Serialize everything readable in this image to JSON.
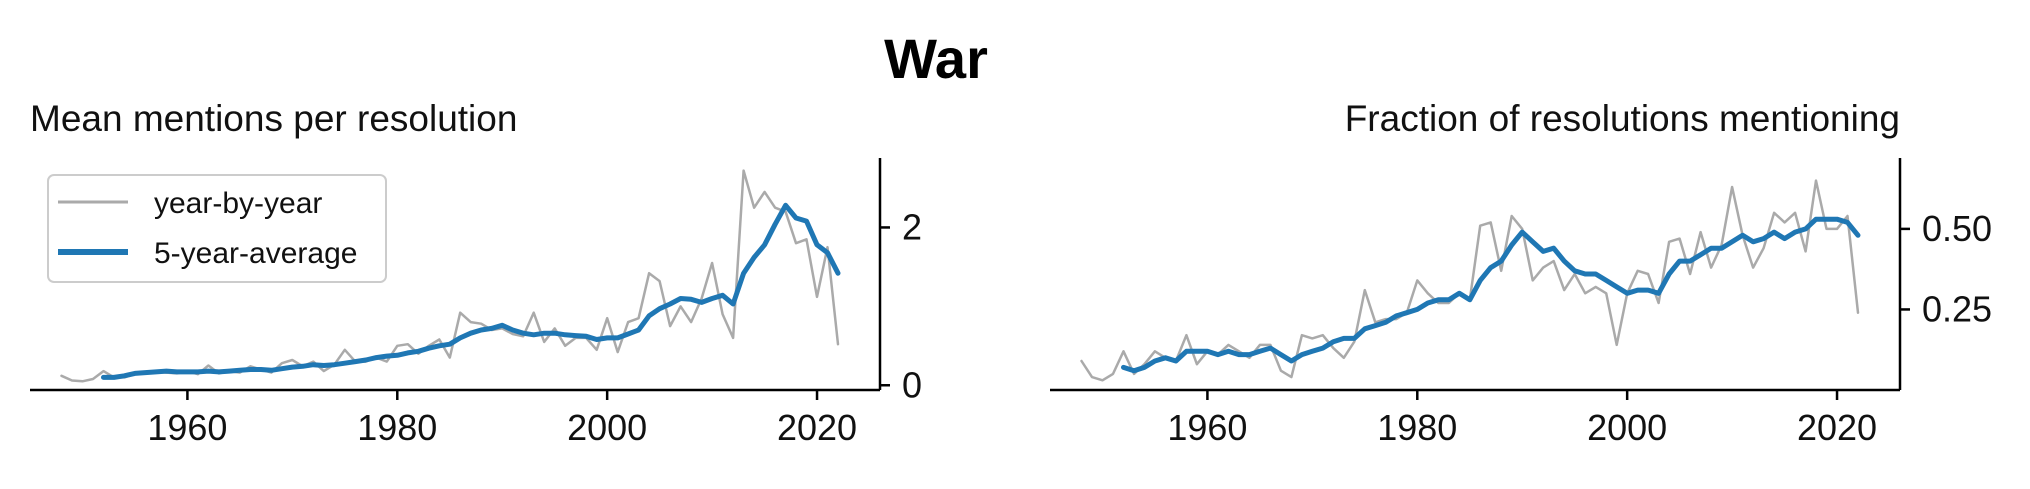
{
  "suptitle": "War",
  "legend": {
    "raw": "year-by-year",
    "avg": "5-year-average"
  },
  "colors": {
    "raw": "#aaaaaa",
    "avg": "#1f77b4",
    "axis": "#000000"
  },
  "chart_data": [
    {
      "type": "line",
      "title": "Mean mentions per resolution",
      "xlabel": "",
      "ylabel": "",
      "xlim": [
        1945,
        2026
      ],
      "ylim": [
        -0.06,
        2.88
      ],
      "xticks": [
        1960,
        1980,
        2000,
        2020
      ],
      "yticks": [
        0,
        2
      ],
      "y_axis_side": "right",
      "legend_position": "upper left",
      "series": [
        {
          "name": "year-by-year",
          "x": [
            1948,
            1949,
            1950,
            1951,
            1952,
            1953,
            1954,
            1955,
            1956,
            1957,
            1958,
            1959,
            1960,
            1961,
            1962,
            1963,
            1964,
            1965,
            1966,
            1967,
            1968,
            1969,
            1970,
            1971,
            1972,
            1973,
            1974,
            1975,
            1976,
            1977,
            1978,
            1979,
            1980,
            1981,
            1982,
            1983,
            1984,
            1985,
            1986,
            1987,
            1988,
            1989,
            1990,
            1991,
            1992,
            1993,
            1994,
            1995,
            1996,
            1997,
            1998,
            1999,
            2000,
            2001,
            2002,
            2003,
            2004,
            2005,
            2006,
            2007,
            2008,
            2009,
            2010,
            2011,
            2012,
            2013,
            2014,
            2015,
            2016,
            2017,
            2018,
            2019,
            2020,
            2021,
            2022
          ],
          "y": [
            0.12,
            0.06,
            0.05,
            0.08,
            0.18,
            0.1,
            0.1,
            0.14,
            0.16,
            0.17,
            0.16,
            0.15,
            0.18,
            0.14,
            0.25,
            0.15,
            0.18,
            0.16,
            0.24,
            0.2,
            0.16,
            0.28,
            0.32,
            0.24,
            0.3,
            0.18,
            0.26,
            0.45,
            0.3,
            0.3,
            0.35,
            0.3,
            0.5,
            0.52,
            0.4,
            0.5,
            0.58,
            0.35,
            0.92,
            0.8,
            0.78,
            0.7,
            0.72,
            0.65,
            0.62,
            0.92,
            0.55,
            0.72,
            0.5,
            0.6,
            0.6,
            0.45,
            0.85,
            0.42,
            0.8,
            0.85,
            1.42,
            1.32,
            0.75,
            1.0,
            0.8,
            1.1,
            1.55,
            0.9,
            0.6,
            2.72,
            2.25,
            2.45,
            2.25,
            2.2,
            1.8,
            1.85,
            1.12,
            1.75,
            0.52
          ]
        },
        {
          "name": "5-year-average",
          "x": [
            1952,
            1953,
            1954,
            1955,
            1956,
            1957,
            1958,
            1959,
            1960,
            1961,
            1962,
            1963,
            1964,
            1965,
            1966,
            1967,
            1968,
            1969,
            1970,
            1971,
            1972,
            1973,
            1974,
            1975,
            1976,
            1977,
            1978,
            1979,
            1980,
            1981,
            1982,
            1983,
            1984,
            1985,
            1986,
            1987,
            1988,
            1989,
            1990,
            1991,
            1992,
            1993,
            1994,
            1995,
            1996,
            1997,
            1998,
            1999,
            2000,
            2001,
            2002,
            2003,
            2004,
            2005,
            2006,
            2007,
            2008,
            2009,
            2010,
            2011,
            2012,
            2013,
            2014,
            2015,
            2016,
            2017,
            2018,
            2019,
            2020,
            2021,
            2022
          ],
          "y": [
            0.1,
            0.1,
            0.12,
            0.15,
            0.16,
            0.17,
            0.18,
            0.17,
            0.17,
            0.17,
            0.18,
            0.17,
            0.18,
            0.19,
            0.2,
            0.2,
            0.19,
            0.21,
            0.23,
            0.24,
            0.26,
            0.25,
            0.26,
            0.28,
            0.3,
            0.32,
            0.35,
            0.37,
            0.38,
            0.41,
            0.43,
            0.47,
            0.5,
            0.52,
            0.6,
            0.66,
            0.7,
            0.72,
            0.76,
            0.7,
            0.66,
            0.64,
            0.66,
            0.66,
            0.64,
            0.63,
            0.62,
            0.58,
            0.6,
            0.6,
            0.65,
            0.7,
            0.88,
            0.97,
            1.03,
            1.1,
            1.09,
            1.05,
            1.1,
            1.14,
            1.03,
            1.42,
            1.62,
            1.78,
            2.04,
            2.28,
            2.12,
            2.08,
            1.78,
            1.68,
            1.42
          ]
        }
      ]
    },
    {
      "type": "line",
      "title": "Fraction of resolutions mentioning",
      "xlabel": "",
      "ylabel": "",
      "xlim": [
        1945,
        2026
      ],
      "ylim": [
        0.0,
        0.72
      ],
      "xticks": [
        1960,
        1980,
        2000,
        2020
      ],
      "yticks": [
        0.25,
        0.5
      ],
      "ytick_labels": [
        "0.25",
        "0.50"
      ],
      "y_axis_side": "right",
      "series": [
        {
          "name": "year-by-year",
          "x": [
            1948,
            1949,
            1950,
            1951,
            1952,
            1953,
            1954,
            1955,
            1956,
            1957,
            1958,
            1959,
            1960,
            1961,
            1962,
            1963,
            1964,
            1965,
            1966,
            1967,
            1968,
            1969,
            1970,
            1971,
            1972,
            1973,
            1974,
            1975,
            1976,
            1977,
            1978,
            1979,
            1980,
            1981,
            1982,
            1983,
            1984,
            1985,
            1986,
            1987,
            1988,
            1989,
            1990,
            1991,
            1992,
            1993,
            1994,
            1995,
            1996,
            1997,
            1998,
            1999,
            2000,
            2001,
            2002,
            2003,
            2004,
            2005,
            2006,
            2007,
            2008,
            2009,
            2010,
            2011,
            2012,
            2013,
            2014,
            2015,
            2016,
            2017,
            2018,
            2019,
            2020,
            2021,
            2022
          ],
          "y": [
            0.09,
            0.04,
            0.03,
            0.05,
            0.12,
            0.05,
            0.08,
            0.12,
            0.1,
            0.09,
            0.17,
            0.08,
            0.12,
            0.11,
            0.14,
            0.12,
            0.1,
            0.14,
            0.14,
            0.06,
            0.04,
            0.17,
            0.16,
            0.17,
            0.13,
            0.1,
            0.15,
            0.31,
            0.21,
            0.22,
            0.22,
            0.24,
            0.34,
            0.3,
            0.27,
            0.27,
            0.3,
            0.28,
            0.51,
            0.52,
            0.37,
            0.54,
            0.5,
            0.34,
            0.38,
            0.4,
            0.31,
            0.36,
            0.3,
            0.32,
            0.3,
            0.14,
            0.3,
            0.37,
            0.36,
            0.27,
            0.46,
            0.47,
            0.36,
            0.49,
            0.38,
            0.45,
            0.63,
            0.48,
            0.38,
            0.44,
            0.55,
            0.52,
            0.55,
            0.43,
            0.65,
            0.5,
            0.5,
            0.54,
            0.24
          ]
        },
        {
          "name": "5-year-average",
          "x": [
            1952,
            1953,
            1954,
            1955,
            1956,
            1957,
            1958,
            1959,
            1960,
            1961,
            1962,
            1963,
            1964,
            1965,
            1966,
            1967,
            1968,
            1969,
            1970,
            1971,
            1972,
            1973,
            1974,
            1975,
            1976,
            1977,
            1978,
            1979,
            1980,
            1981,
            1982,
            1983,
            1984,
            1985,
            1986,
            1987,
            1988,
            1989,
            1990,
            1991,
            1992,
            1993,
            1994,
            1995,
            1996,
            1997,
            1998,
            1999,
            2000,
            2001,
            2002,
            2003,
            2004,
            2005,
            2006,
            2007,
            2008,
            2009,
            2010,
            2011,
            2012,
            2013,
            2014,
            2015,
            2016,
            2017,
            2018,
            2019,
            2020,
            2021,
            2022
          ],
          "y": [
            0.07,
            0.06,
            0.07,
            0.09,
            0.1,
            0.09,
            0.12,
            0.12,
            0.12,
            0.11,
            0.12,
            0.11,
            0.11,
            0.12,
            0.13,
            0.11,
            0.09,
            0.11,
            0.12,
            0.13,
            0.15,
            0.16,
            0.16,
            0.19,
            0.2,
            0.21,
            0.23,
            0.24,
            0.25,
            0.27,
            0.28,
            0.28,
            0.3,
            0.28,
            0.34,
            0.38,
            0.4,
            0.45,
            0.49,
            0.46,
            0.43,
            0.44,
            0.4,
            0.37,
            0.36,
            0.36,
            0.34,
            0.32,
            0.3,
            0.31,
            0.31,
            0.3,
            0.36,
            0.4,
            0.4,
            0.42,
            0.44,
            0.44,
            0.46,
            0.48,
            0.46,
            0.47,
            0.49,
            0.47,
            0.49,
            0.5,
            0.53,
            0.53,
            0.53,
            0.52,
            0.48
          ]
        }
      ]
    }
  ]
}
